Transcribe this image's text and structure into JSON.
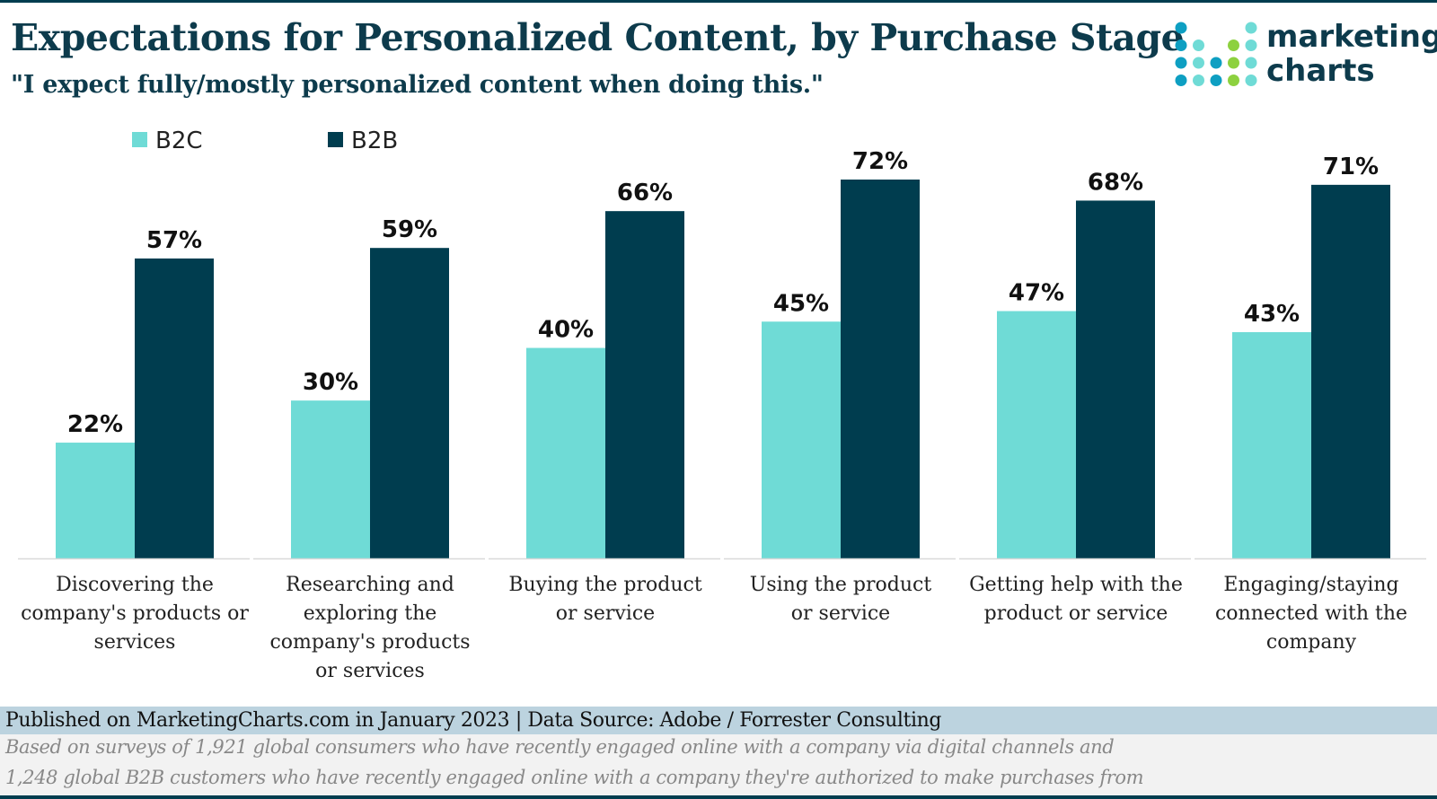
{
  "header": {
    "title": "Expectations for Personalized Content, by Purchase Stage",
    "subtitle": "\"I expect fully/mostly personalized content when doing this.\"",
    "logo_text": [
      "marketing",
      "charts"
    ]
  },
  "chart_data": {
    "type": "bar",
    "title": "Expectations for Personalized Content, by Purchase Stage",
    "subtitle": "\"I expect fully/mostly personalized content when doing this.\"",
    "categories": [
      [
        "Discovering the",
        "company's products or",
        "services"
      ],
      [
        "Researching and",
        "exploring the",
        "company's products",
        "or services"
      ],
      [
        "Buying the product",
        "or service"
      ],
      [
        "Using the product",
        "or service"
      ],
      [
        "Getting help with the",
        "product or service"
      ],
      [
        "Engaging/staying",
        "connected with the",
        "company"
      ]
    ],
    "series": [
      {
        "name": "B2C",
        "color": "#6fdbd6",
        "values": [
          22,
          30,
          40,
          45,
          47,
          43
        ],
        "labels": [
          "22%",
          "30%",
          "40%",
          "45%",
          "47%",
          "43%"
        ]
      },
      {
        "name": "B2B",
        "color": "#003d4f",
        "values": [
          57,
          59,
          66,
          72,
          68,
          71
        ],
        "labels": [
          "57%",
          "59%",
          "66%",
          "72%",
          "68%",
          "71%"
        ]
      }
    ],
    "unit": "%",
    "ylim": [
      0,
      72
    ],
    "grid": false,
    "legend": "top-left",
    "data_labels": true
  },
  "footer": {
    "published": "Published on MarketingCharts.com in January 2023 | Data Source: Adobe / Forrester Consulting",
    "note_line1": "Based on surveys of 1,921 global consumers who have recently engaged online with a company via digital channels and",
    "note_line2": "1,248 global B2B customers who have recently engaged online with a company they're authorized to make purchases from"
  },
  "colors": {
    "title": "#0d3b4c",
    "logo_blue": "#0e9fc2",
    "logo_teal": "#6fdbd6",
    "logo_green": "#8dd13f"
  }
}
